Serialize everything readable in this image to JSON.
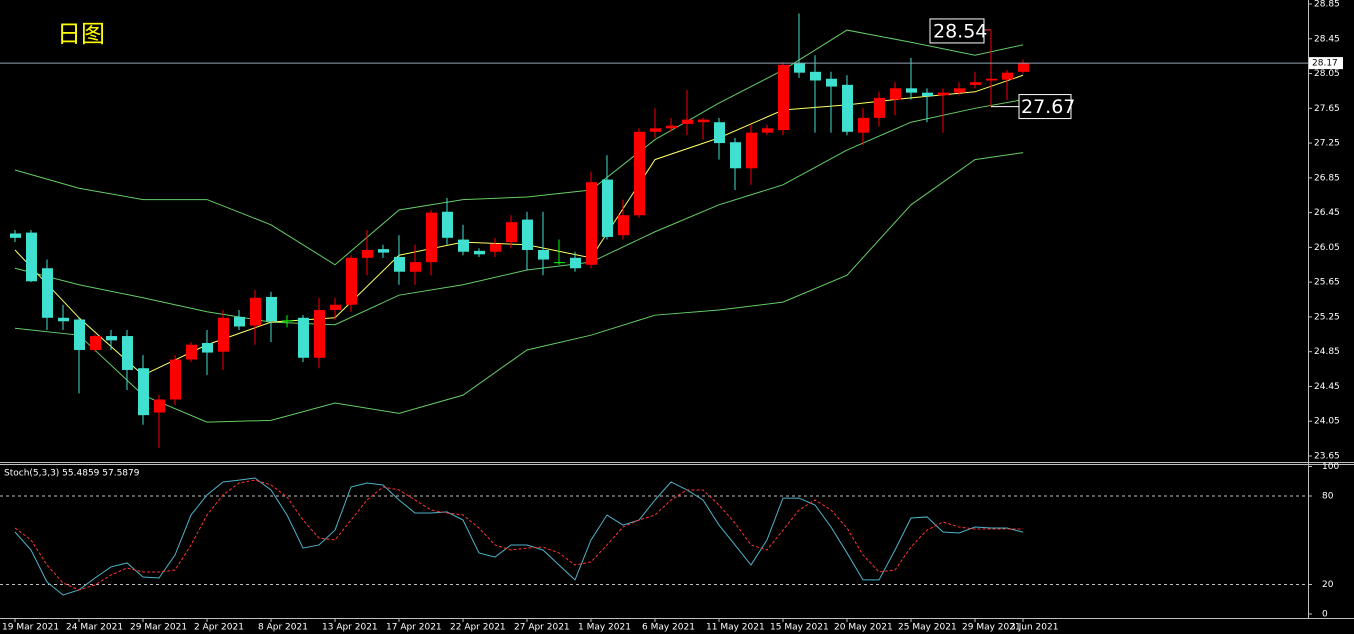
{
  "chart_data": {
    "type": "candlestick",
    "title": "日图",
    "categories": [
      "19 Mar 2021",
      null,
      null,
      null,
      "24 Mar 2021",
      null,
      null,
      null,
      "29 Mar 2021",
      null,
      null,
      null,
      "2 Apr 2021",
      null,
      null,
      null,
      "8 Apr 2021",
      null,
      null,
      null,
      "13 Apr 2021",
      null,
      null,
      null,
      "17 Apr 2021",
      null,
      null,
      null,
      "22 Apr 2021",
      null,
      null,
      null,
      "27 Apr 2021",
      null,
      null,
      null,
      "1 May 2021",
      null,
      null,
      null,
      "6 May 2021",
      null,
      null,
      null,
      "11 May 2021",
      null,
      null,
      null,
      "15 May 2021",
      null,
      null,
      null,
      "20 May 2021",
      null,
      null,
      null,
      "25 May 2021",
      null,
      null,
      null,
      "29 May 2021",
      null,
      null,
      "3 Jun 2021"
    ],
    "open": [
      26.21,
      26.22,
      25.81,
      25.24,
      25.22,
      24.87,
      25.03,
      25.03,
      24.66,
      24.15,
      24.3,
      24.76,
      24.95,
      24.85,
      25.25,
      25.15,
      25.48,
      25.21,
      25.24,
      24.78,
      25.33,
      25.39,
      25.93,
      26.03,
      25.94,
      25.77,
      25.88,
      26.46,
      26.14,
      26.01,
      26.0,
      26.11,
      26.37,
      26.02,
      25.88,
      25.93,
      25.85,
      26.83,
      26.19,
      26.42,
      27.38,
      27.42,
      27.47,
      27.49,
      27.49,
      27.26,
      26.96,
      27.37,
      27.4,
      28.17,
      28.07,
      27.99,
      27.92,
      27.37,
      27.54,
      27.75,
      27.88,
      27.83,
      27.8,
      27.83,
      27.92,
      27.97,
      27.98,
      28.07
    ],
    "high": [
      26.25,
      26.25,
      25.91,
      25.39,
      25.24,
      25.05,
      25.1,
      25.1,
      24.81,
      24.35,
      24.81,
      24.96,
      25.1,
      25.33,
      25.33,
      25.56,
      25.54,
      25.27,
      25.27,
      25.47,
      25.47,
      25.96,
      26.25,
      26.08,
      26.19,
      26.08,
      26.48,
      26.62,
      26.31,
      26.04,
      26.16,
      26.42,
      26.46,
      26.46,
      26.14,
      26.0,
      26.92,
      27.11,
      26.6,
      27.42,
      27.65,
      27.54,
      27.86,
      27.54,
      27.54,
      27.31,
      27.46,
      27.46,
      28.18,
      28.74,
      28.26,
      28.07,
      28.03,
      27.65,
      27.84,
      27.95,
      28.23,
      27.88,
      27.88,
      27.95,
      28.07,
      28.54,
      28.09,
      28.21
    ],
    "low": [
      26.11,
      25.65,
      25.1,
      25.1,
      24.37,
      24.85,
      24.87,
      24.41,
      24.01,
      23.74,
      24.24,
      24.73,
      24.58,
      24.64,
      25.1,
      24.93,
      24.96,
      25.13,
      24.73,
      24.66,
      25.22,
      25.31,
      25.73,
      25.93,
      25.62,
      25.62,
      25.73,
      26.08,
      25.96,
      25.94,
      25.94,
      26.04,
      25.79,
      25.73,
      25.85,
      25.77,
      25.81,
      26.14,
      26.14,
      26.39,
      27.31,
      27.38,
      27.34,
      27.29,
      27.06,
      26.71,
      26.77,
      27.34,
      27.34,
      28.0,
      27.37,
      27.37,
      27.34,
      27.23,
      27.44,
      27.57,
      27.75,
      27.49,
      27.37,
      27.8,
      27.88,
      27.67,
      27.75,
      28.05
    ],
    "close": [
      26.16,
      25.66,
      25.24,
      25.2,
      24.87,
      25.03,
      24.98,
      24.64,
      24.12,
      24.3,
      24.76,
      24.93,
      24.84,
      25.24,
      25.14,
      25.47,
      25.2,
      25.21,
      24.78,
      25.33,
      25.39,
      25.93,
      26.02,
      25.99,
      25.77,
      25.88,
      26.45,
      26.16,
      26.0,
      25.97,
      26.09,
      26.34,
      26.02,
      25.91,
      25.88,
      25.81,
      26.8,
      26.17,
      26.42,
      27.38,
      27.42,
      27.45,
      27.52,
      27.52,
      27.25,
      26.96,
      27.37,
      27.42,
      28.15,
      28.06,
      27.97,
      27.9,
      27.38,
      27.54,
      27.77,
      27.88,
      27.83,
      27.79,
      27.83,
      27.88,
      27.95,
      27.99,
      28.06,
      28.17
    ],
    "up_color": "#ff0000",
    "down_color": "#40e0d0",
    "doji_color": "#00ff00",
    "ylim": [
      23.65,
      28.85
    ],
    "yticks": [
      23.65,
      24.05,
      24.45,
      24.85,
      25.25,
      25.65,
      26.05,
      26.45,
      26.85,
      27.25,
      27.65,
      28.05,
      28.45,
      28.85
    ],
    "current_price": 28.17,
    "annotations": [
      28.54,
      27.67
    ],
    "overlays": {
      "x": [
        0,
        4,
        8,
        12,
        16,
        20,
        24,
        28,
        32,
        36,
        40,
        44,
        48,
        52,
        56,
        60,
        63
      ],
      "series": [
        {
          "color": "#66cc66",
          "values": [
            26.94,
            26.73,
            26.6,
            26.6,
            26.31,
            25.85,
            26.48,
            26.6,
            26.63,
            26.71,
            27.29,
            27.71,
            28.09,
            28.55,
            28.41,
            28.26,
            28.38
          ]
        },
        {
          "color": "#66cc66",
          "values": [
            25.81,
            25.62,
            25.47,
            25.31,
            25.19,
            25.16,
            25.5,
            25.62,
            25.79,
            25.88,
            26.23,
            26.54,
            26.77,
            27.17,
            27.49,
            27.65,
            27.75
          ]
        },
        {
          "color": "#66cc66",
          "values": [
            25.12,
            25.04,
            24.35,
            24.04,
            24.06,
            24.26,
            24.14,
            24.35,
            24.87,
            25.04,
            25.27,
            25.33,
            25.42,
            25.73,
            26.54,
            27.06,
            27.14
          ]
        },
        {
          "color": "#ffff66",
          "values": [
            26.02,
            25.24,
            24.58,
            24.93,
            25.19,
            25.24,
            25.96,
            26.11,
            26.08,
            25.93,
            27.06,
            27.31,
            27.63,
            27.69,
            27.77,
            27.84,
            28.03
          ]
        }
      ]
    },
    "indicator": {
      "label": "Stoch(5,3,3) 55.4859 57.5879",
      "ylim": [
        0,
        100
      ],
      "yticks": [
        0,
        20,
        80,
        100
      ],
      "levels": [
        20,
        80
      ],
      "series": [
        {
          "color": "#4fb3c8",
          "values": [
            55.6,
            43.4,
            21.7,
            12.9,
            16.3,
            24.4,
            31.9,
            34.6,
            25.1,
            24.4,
            40.0,
            67.1,
            80.7,
            89.5,
            90.8,
            92.2,
            84.1,
            67.1,
            44.7,
            46.8,
            56.9,
            86.1,
            88.8,
            87.5,
            77.3,
            68.5,
            68.5,
            69.2,
            63.7,
            41.4,
            38.6,
            46.8,
            46.8,
            43.4,
            33.2,
            23.1,
            50.2,
            67.1,
            60.3,
            63.7,
            77.3,
            89.5,
            84.1,
            77.3,
            60.3,
            46.8,
            33.2,
            50.2,
            78.6,
            78.6,
            73.9,
            59.0,
            41.4,
            23.1,
            23.1,
            43.4,
            65.1,
            65.8,
            55.6,
            54.9,
            59.0,
            58.3,
            58.3,
            55.49
          ]
        },
        {
          "color": "#ff3333",
          "dashed": true,
          "values": [
            58.3,
            50.2,
            33.2,
            21.0,
            16.3,
            19.7,
            26.4,
            31.2,
            28.5,
            28.5,
            29.8,
            46.8,
            67.1,
            80.7,
            88.8,
            90.8,
            87.5,
            79.3,
            63.7,
            51.5,
            50.2,
            63.7,
            77.3,
            86.1,
            84.1,
            77.3,
            70.5,
            68.5,
            67.1,
            58.3,
            46.8,
            43.4,
            44.7,
            45.4,
            41.4,
            33.2,
            35.3,
            46.8,
            59.0,
            63.7,
            67.1,
            77.3,
            84.1,
            84.1,
            73.9,
            61.7,
            46.8,
            43.4,
            56.9,
            70.5,
            77.3,
            70.5,
            58.3,
            40.0,
            28.5,
            29.8,
            45.4,
            56.9,
            62.4,
            59.0,
            57.6,
            57.6,
            57.6,
            57.59
          ]
        }
      ]
    }
  }
}
